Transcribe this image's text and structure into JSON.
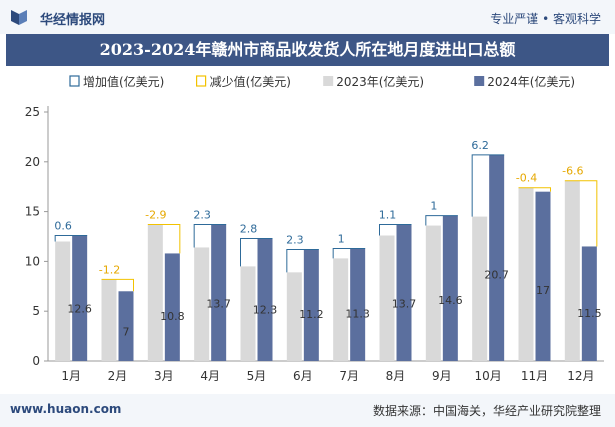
{
  "header": {
    "site_name": "华经情报网",
    "slogan": "专业严谨 • 客观科学"
  },
  "footer": {
    "url": "www.huaon.com",
    "source": "数据来源：中国海关，华经产业研究院整理"
  },
  "colors": {
    "increase": "#2e6a99",
    "decrease": "#f2c200",
    "y2023": "#d9d9d9",
    "y2024": "#5b6f9e",
    "title_bg": "#3d5686"
  },
  "chart_data": {
    "type": "bar",
    "title": "2023-2024年赣州市商品收发货人所在地月度进出口总额",
    "categories": [
      "1月",
      "2月",
      "3月",
      "4月",
      "5月",
      "6月",
      "7月",
      "8月",
      "9月",
      "10月",
      "11月",
      "12月"
    ],
    "series": [
      {
        "name": "2023年(亿美元)",
        "values": [
          12.0,
          8.2,
          13.7,
          11.4,
          9.5,
          8.9,
          10.3,
          12.6,
          13.6,
          14.5,
          17.4,
          18.1
        ]
      },
      {
        "name": "2024年(亿美元)",
        "values": [
          12.6,
          7.0,
          10.8,
          13.7,
          12.3,
          11.2,
          11.3,
          13.7,
          14.6,
          20.7,
          17.0,
          11.5
        ]
      }
    ],
    "bar_labels": [
      "12.6",
      "7",
      "10.8",
      "13.7",
      "12.3",
      "11.2",
      "11.3",
      "13.7",
      "14.6",
      "20.7",
      "17",
      "11.5"
    ],
    "change": {
      "increase_name": "增加值(亿美元)",
      "decrease_name": "减少值(亿美元)",
      "values": [
        0.6,
        -1.2,
        -2.9,
        2.3,
        2.8,
        2.3,
        1,
        1.1,
        1,
        6.2,
        -0.4,
        -6.6
      ]
    },
    "ylim": [
      0,
      25
    ],
    "yticks": [
      0,
      5,
      10,
      15,
      20,
      25
    ],
    "legend_position": "top",
    "grid": false
  }
}
